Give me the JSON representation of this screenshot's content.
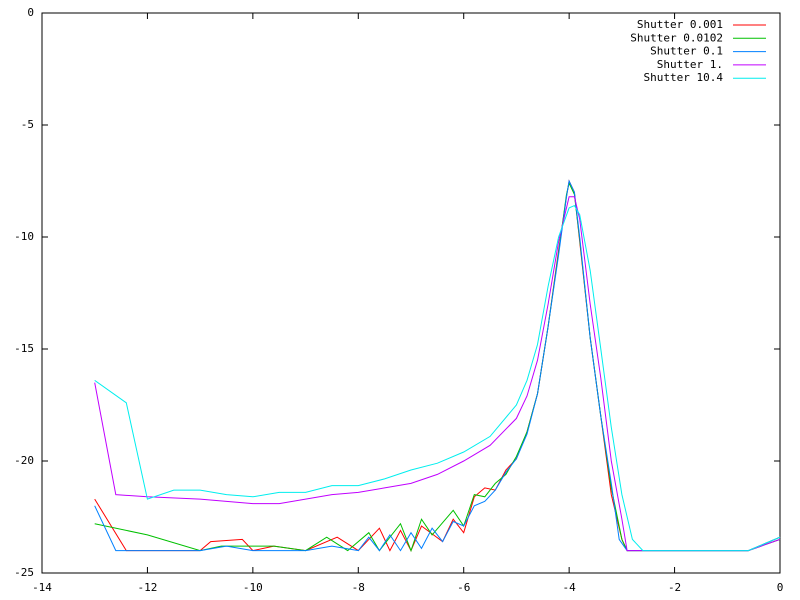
{
  "chart_data": {
    "type": "line",
    "xlim": [
      -14,
      0
    ],
    "xticks": [
      -14,
      -12,
      -10,
      -8,
      -6,
      -4,
      -2,
      0
    ],
    "ylim": [
      -25,
      0
    ],
    "yticks": [
      -25,
      -20,
      -15,
      -10,
      -5,
      0
    ],
    "legend": "top-right",
    "series": [
      {
        "name": "Shutter 0.001",
        "color": "#ff0000",
        "x": [
          -13,
          -12.4,
          -11,
          -10.8,
          -10.2,
          -10,
          -9.6,
          -9,
          -8.4,
          -8,
          -7.6,
          -7.4,
          -7.2,
          -7,
          -6.8,
          -6.4,
          -6.2,
          -6,
          -5.8,
          -5.6,
          -5.4,
          -5.2,
          -5,
          -4.8,
          -4.6,
          -4.4,
          -4.2,
          -4.05,
          -4,
          -3.9,
          -3.8,
          -3.6,
          -3.4,
          -3.2,
          -3,
          -2.9,
          -0.6,
          0
        ],
        "values": [
          -21.7,
          -24,
          -24,
          -23.6,
          -23.5,
          -24,
          -23.8,
          -24,
          -23.4,
          -24,
          -23.0,
          -24,
          -23.1,
          -24,
          -22.9,
          -23.6,
          -22.6,
          -23.2,
          -21.6,
          -21.2,
          -21.3,
          -20.4,
          -19.9,
          -18.7,
          -17,
          -14,
          -10.6,
          -8.2,
          -7.5,
          -8,
          -10.2,
          -14.5,
          -18,
          -21.5,
          -23.5,
          -24,
          -24,
          -23.4
        ]
      },
      {
        "name": "Shutter 0.0102",
        "color": "#00c000",
        "x": [
          -13,
          -12,
          -11,
          -10.6,
          -9.6,
          -9,
          -8.6,
          -8.2,
          -7.8,
          -7.6,
          -7.2,
          -7,
          -6.8,
          -6.6,
          -6.2,
          -6,
          -5.8,
          -5.6,
          -5.4,
          -5.2,
          -5,
          -4.8,
          -4.6,
          -4.4,
          -4.2,
          -4.05,
          -4,
          -3.9,
          -3.8,
          -3.6,
          -3.4,
          -3.2,
          -3,
          -2.9,
          -0.6,
          0
        ],
        "values": [
          -22.8,
          -23.3,
          -24,
          -23.8,
          -23.8,
          -24,
          -23.4,
          -24,
          -23.2,
          -24,
          -22.8,
          -24,
          -22.6,
          -23.3,
          -22.2,
          -22.9,
          -21.5,
          -21.6,
          -21.0,
          -20.6,
          -19.8,
          -18.7,
          -17,
          -14,
          -10.7,
          -8.1,
          -7.6,
          -8.1,
          -10.1,
          -14.5,
          -18,
          -21.2,
          -23.5,
          -24,
          -24,
          -23.5
        ]
      },
      {
        "name": "Shutter 0.1",
        "color": "#0080ff",
        "x": [
          -13,
          -12.6,
          -11,
          -10.5,
          -10,
          -9,
          -8.5,
          -8,
          -7.8,
          -7.6,
          -7.4,
          -7.2,
          -7,
          -6.8,
          -6.6,
          -6.4,
          -6.2,
          -6,
          -5.8,
          -5.6,
          -5.4,
          -5.2,
          -5,
          -4.8,
          -4.6,
          -4.4,
          -4.2,
          -4.05,
          -4,
          -3.9,
          -3.8,
          -3.6,
          -3.4,
          -3.2,
          -3.05,
          -2.9,
          -0.6,
          0
        ],
        "values": [
          -22,
          -24,
          -24,
          -23.8,
          -24,
          -24,
          -23.8,
          -24,
          -23.4,
          -24,
          -23.3,
          -24,
          -23.2,
          -23.9,
          -23.0,
          -23.6,
          -22.7,
          -22.9,
          -22,
          -21.8,
          -21.3,
          -20.5,
          -19.9,
          -18.8,
          -17,
          -14,
          -10.8,
          -8.2,
          -7.5,
          -8,
          -10,
          -14.5,
          -18,
          -21,
          -23.5,
          -24,
          -24,
          -23.4
        ]
      },
      {
        "name": "Shutter 1.",
        "color": "#c000ff",
        "x": [
          -13,
          -12.6,
          -12,
          -11,
          -10,
          -9.5,
          -9,
          -8.5,
          -8,
          -7.5,
          -7,
          -6.5,
          -6,
          -5.5,
          -5,
          -4.8,
          -4.6,
          -4.4,
          -4.2,
          -4,
          -3.9,
          -3.8,
          -3.6,
          -3.4,
          -3.2,
          -3,
          -2.9,
          -0.6,
          0
        ],
        "values": [
          -16.5,
          -21.5,
          -21.6,
          -21.7,
          -21.9,
          -21.9,
          -21.7,
          -21.5,
          -21.4,
          -21.2,
          -21,
          -20.6,
          -20,
          -19.3,
          -18.1,
          -17.1,
          -15.5,
          -13,
          -10.2,
          -8.2,
          -8.2,
          -9.2,
          -13,
          -16.3,
          -20,
          -22.6,
          -24,
          -24,
          -23.5
        ]
      },
      {
        "name": "Shutter 10.4",
        "color": "#00eeee",
        "x": [
          -13,
          -12.4,
          -12,
          -11.5,
          -11,
          -10.5,
          -10,
          -9.5,
          -9,
          -8.5,
          -8,
          -7.5,
          -7,
          -6.5,
          -6,
          -5.5,
          -5,
          -4.8,
          -4.6,
          -4.4,
          -4.2,
          -4,
          -3.9,
          -3.8,
          -3.6,
          -3.4,
          -3.2,
          -3,
          -2.8,
          -2.6,
          -2.4,
          -1,
          -0.6,
          0
        ],
        "values": [
          -16.4,
          -17.4,
          -21.7,
          -21.3,
          -21.3,
          -21.5,
          -21.6,
          -21.4,
          -21.4,
          -21.1,
          -21.1,
          -20.8,
          -20.4,
          -20.1,
          -19.6,
          -18.9,
          -17.5,
          -16.4,
          -14.8,
          -12.2,
          -10,
          -8.7,
          -8.6,
          -9,
          -11.5,
          -15,
          -18.5,
          -21.5,
          -23.5,
          -24,
          -24,
          -24,
          -24,
          -23.4
        ]
      }
    ]
  }
}
